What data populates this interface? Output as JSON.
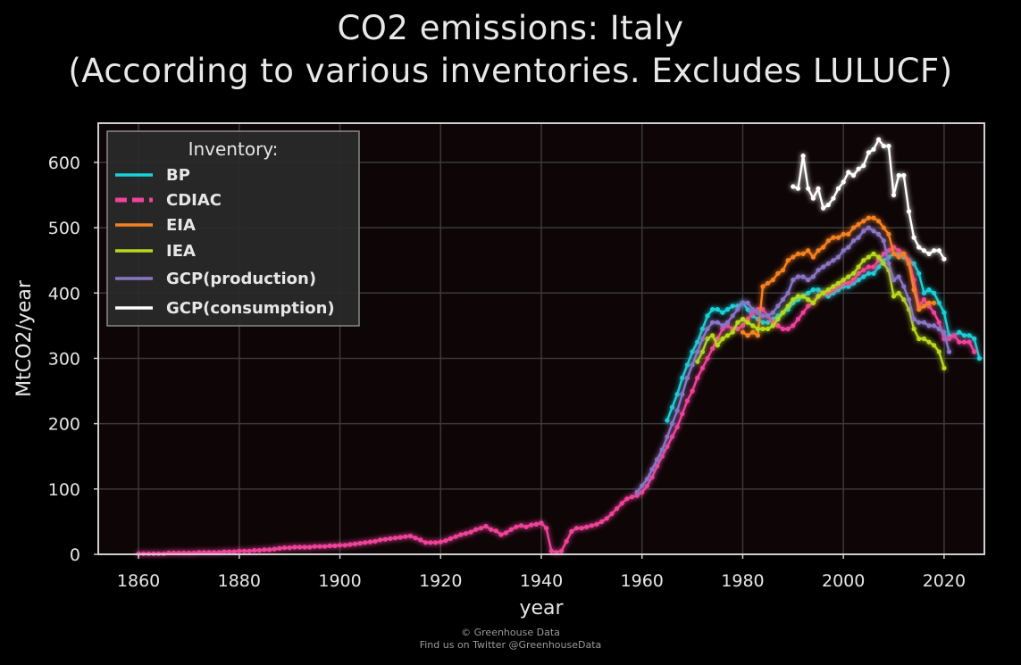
{
  "chart_data": {
    "type": "line",
    "title": "CO2 emissions: Italy",
    "subtitle": "(According to various inventories. Excludes LULUCF)",
    "xlabel": "year",
    "ylabel": "MtCO2/year",
    "xlim": [
      1852,
      2028
    ],
    "ylim": [
      0,
      660
    ],
    "xticks": [
      1860,
      1880,
      1900,
      1920,
      1940,
      1960,
      1980,
      2000,
      2020
    ],
    "yticks": [
      0,
      100,
      200,
      300,
      400,
      500,
      600
    ],
    "grid": true,
    "legend": {
      "title": "Inventory:",
      "placement": "top-left"
    },
    "colors": {
      "background": "#000000",
      "plot_bg": "#0e0506",
      "grid": "#3a3a3a",
      "frame": "#cfcfcf"
    },
    "series": [
      {
        "name": "BP",
        "color": "#19d3da",
        "dash": false,
        "x_start": 1965,
        "values": [
          205,
          225,
          245,
          270,
          290,
          310,
          325,
          345,
          365,
          375,
          375,
          370,
          375,
          380,
          380,
          385,
          375,
          365,
          360,
          355,
          355,
          360,
          365,
          370,
          375,
          385,
          390,
          395,
          400,
          405,
          405,
          400,
          395,
          400,
          405,
          410,
          410,
          415,
          420,
          425,
          430,
          430,
          440,
          450,
          455,
          460,
          460,
          455,
          450,
          445,
          430,
          400,
          405,
          400,
          385,
          370,
          335,
          335,
          340,
          335,
          335,
          330,
          300
        ]
      },
      {
        "name": "CDIAC",
        "color": "#f0439a",
        "dash": true,
        "x_start": 1860,
        "values": [
          1,
          1,
          1,
          1,
          1,
          1,
          2,
          2,
          2,
          2,
          2,
          2,
          3,
          3,
          3,
          3,
          3,
          4,
          4,
          4,
          5,
          5,
          5,
          6,
          6,
          7,
          7,
          8,
          9,
          10,
          10,
          11,
          11,
          11,
          11,
          12,
          12,
          12,
          13,
          13,
          14,
          14,
          15,
          16,
          17,
          18,
          19,
          20,
          22,
          23,
          24,
          25,
          26,
          27,
          28,
          25,
          22,
          18,
          18,
          18,
          19,
          21,
          24,
          27,
          30,
          32,
          34,
          38,
          40,
          43,
          38,
          36,
          30,
          33,
          38,
          42,
          44,
          42,
          45,
          46,
          48,
          40,
          5,
          3,
          5,
          20,
          35,
          40,
          40,
          42,
          44,
          46,
          50,
          55,
          62,
          70,
          78,
          85,
          88,
          90,
          95,
          105,
          118,
          135,
          150,
          165,
          180,
          195,
          215,
          235,
          250,
          270,
          285,
          300,
          315,
          330,
          345,
          350,
          345,
          345,
          350,
          360,
          370,
          375,
          375,
          365,
          355,
          350,
          345,
          345,
          350,
          360,
          370,
          380,
          385,
          395,
          400,
          400,
          405,
          410,
          415,
          415,
          420,
          430,
          435,
          440,
          440,
          450,
          460,
          465,
          470,
          465,
          460,
          450,
          420,
          380,
          390,
          380,
          370,
          355,
          330,
          330,
          335,
          325,
          325,
          325,
          310
        ]
      },
      {
        "name": "EIA",
        "color": "#f58221",
        "dash": false,
        "x_start": 1980,
        "values": [
          340,
          335,
          340,
          335,
          410,
          415,
          420,
          430,
          435,
          450,
          455,
          460,
          460,
          465,
          455,
          465,
          470,
          480,
          485,
          485,
          490,
          490,
          500,
          505,
          510,
          515,
          515,
          510,
          500,
          490,
          460,
          455,
          460,
          445,
          405,
          375,
          380,
          385,
          385
        ]
      },
      {
        "name": "IEA",
        "color": "#b8d91c",
        "dash": false,
        "x_start": 1971,
        "values": [
          295,
          310,
          330,
          335,
          320,
          330,
          335,
          340,
          355,
          360,
          355,
          350,
          345,
          345,
          345,
          350,
          360,
          370,
          380,
          390,
          395,
          395,
          390,
          385,
          395,
          400,
          405,
          410,
          415,
          420,
          425,
          430,
          440,
          450,
          455,
          460,
          455,
          445,
          435,
          395,
          400,
          390,
          375,
          345,
          330,
          330,
          325,
          320,
          310,
          285
        ]
      },
      {
        "name": "GCP(production)",
        "color": "#8a76c4",
        "dash": false,
        "x_start": 1959,
        "values": [
          95,
          105,
          115,
          130,
          145,
          160,
          180,
          200,
          220,
          245,
          270,
          290,
          310,
          330,
          345,
          355,
          355,
          350,
          355,
          365,
          375,
          385,
          385,
          375,
          370,
          365,
          365,
          370,
          380,
          390,
          400,
          420,
          425,
          425,
          420,
          425,
          435,
          440,
          445,
          450,
          455,
          465,
          470,
          480,
          485,
          495,
          500,
          495,
          490,
          480,
          445,
          420,
          425,
          410,
          390,
          360,
          355,
          355,
          350,
          350,
          345,
          340,
          310
        ]
      },
      {
        "name": "GCP(consumption)",
        "color": "#ffffff",
        "dash": false,
        "x_start": 1990,
        "values": [
          563,
          560,
          610,
          560,
          545,
          560,
          530,
          535,
          545,
          560,
          570,
          585,
          580,
          590,
          595,
          615,
          620,
          635,
          625,
          625,
          550,
          580,
          580,
          525,
          485,
          470,
          465,
          460,
          465,
          465,
          452
        ]
      }
    ]
  },
  "credit": {
    "line1": "© Greenhouse Data",
    "line2": "Find us on Twitter @GreenhouseData"
  }
}
